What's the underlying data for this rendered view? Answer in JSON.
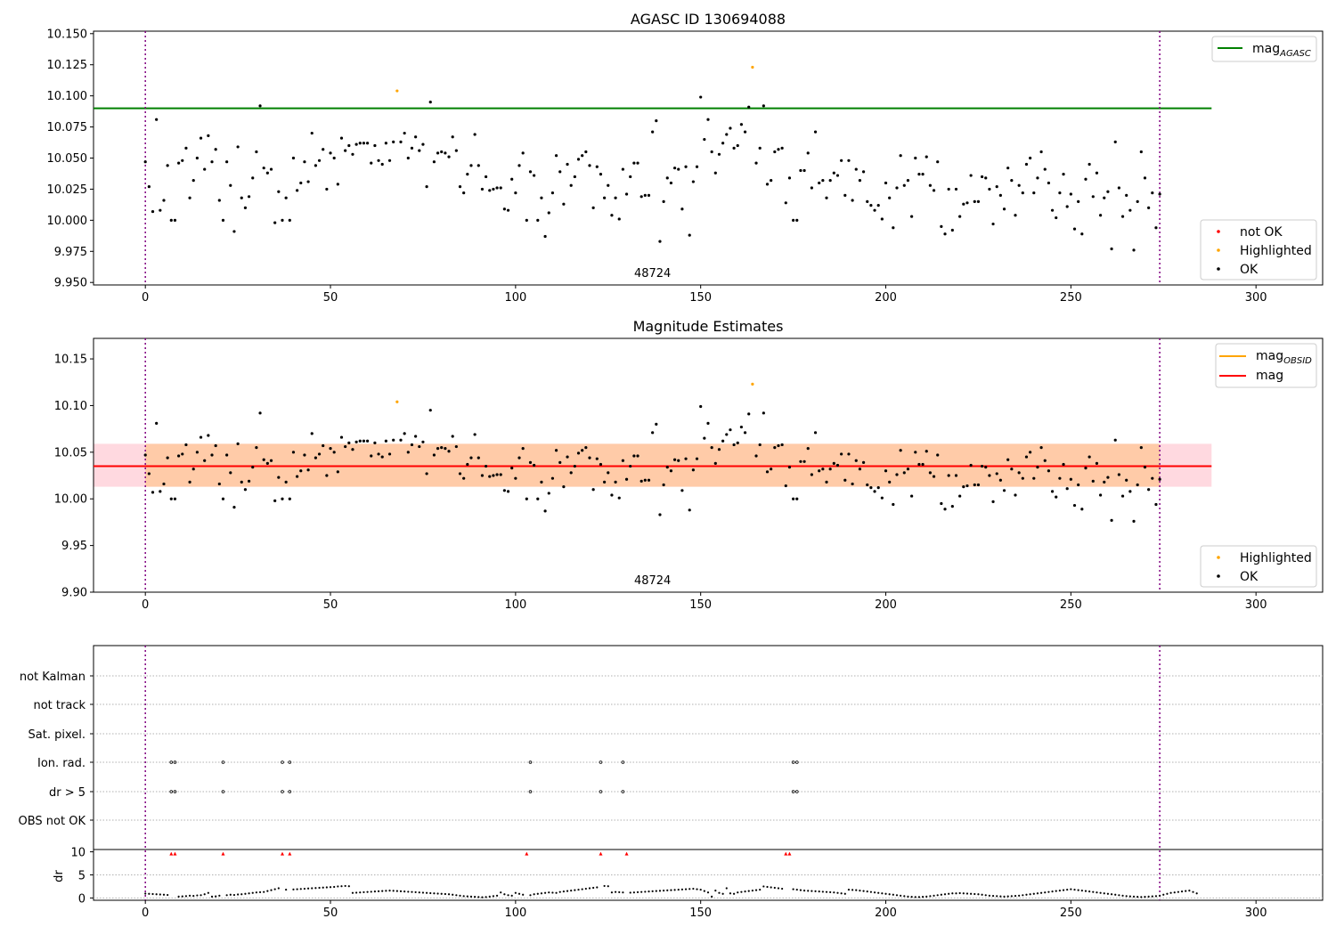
{
  "chart_data": [
    {
      "type": "scatter",
      "title": "AGASC ID 130694088",
      "xlim": [
        -14,
        318
      ],
      "ylim": [
        9.948,
        10.152
      ],
      "xticks": [
        0,
        50,
        100,
        150,
        200,
        250,
        300
      ],
      "yticks": [
        9.95,
        9.975,
        10.0,
        10.025,
        10.05,
        10.075,
        10.1,
        10.125,
        10.15
      ],
      "ytick_format": 3,
      "obsid_label": "48724",
      "obsid_label_x": 137,
      "obsid_boundaries": [
        0,
        274
      ],
      "hlines": [
        {
          "name": "mag_AGASC",
          "value": 10.09,
          "x_range": [
            -14,
            288
          ],
          "color": "#008000"
        }
      ],
      "highlighted_points": [
        {
          "x": 68,
          "y": 10.104
        },
        {
          "x": 164,
          "y": 10.123
        }
      ],
      "series_OK_base": 10.035,
      "legend": {
        "lines": [
          {
            "label": "mag",
            "sub": "AGASC",
            "color": "#008000"
          }
        ],
        "markers": [
          {
            "label": "not OK",
            "color": "#ff0000"
          },
          {
            "label": "Highlighted",
            "color": "#ffa500"
          },
          {
            "label": "OK",
            "color": "#000000"
          }
        ]
      }
    },
    {
      "type": "scatter",
      "title": "Magnitude Estimates",
      "xlim": [
        -14,
        318
      ],
      "ylim": [
        9.9,
        10.172
      ],
      "xticks": [
        0,
        50,
        100,
        150,
        200,
        250,
        300
      ],
      "yticks": [
        9.9,
        9.95,
        10.0,
        10.05,
        10.1,
        10.15
      ],
      "ytick_format": 2,
      "obsid_label": "48724",
      "obsid_label_x": 137,
      "obsid_boundaries": [
        0,
        274
      ],
      "band": {
        "low": 10.013,
        "high": 10.059,
        "x_range": [
          -14,
          288
        ]
      },
      "hlines": [
        {
          "name": "mag",
          "value": 10.035,
          "x_range": [
            -14,
            288
          ],
          "color": "#ff0000"
        }
      ],
      "highlighted_points": [
        {
          "x": 68,
          "y": 10.104
        },
        {
          "x": 164,
          "y": 10.123
        }
      ],
      "legend": {
        "lines": [
          {
            "label": "mag",
            "sub": "OBSID",
            "color": "#ffa500"
          },
          {
            "label": "mag",
            "sub": "",
            "color": "#ff0000"
          }
        ],
        "markers": [
          {
            "label": "Highlighted",
            "color": "#ffa500"
          },
          {
            "label": "OK",
            "color": "#000000"
          }
        ]
      }
    },
    {
      "type": "scatter",
      "title": "",
      "xlim": [
        -14,
        318
      ],
      "xticks": [
        0,
        50,
        100,
        150,
        200,
        250,
        300
      ],
      "flag_rows": [
        "not Kalman",
        "not track",
        "Sat. pixel.",
        "Ion. rad.",
        "dr > 5",
        "OBS not OK"
      ],
      "flag_points": {
        "Ion. rad.": [
          7,
          8,
          21,
          37,
          39,
          104,
          123,
          129,
          175,
          176
        ],
        "dr > 5": [
          7,
          8,
          21,
          37,
          39,
          104,
          123,
          129,
          175,
          176
        ]
      },
      "dr": {
        "ylabel": "dr",
        "yticks": [
          0,
          5,
          10
        ],
        "ylim": [
          -0.5,
          10.5
        ],
        "clip_value": 10,
        "clipped_x": [
          7,
          8,
          21,
          37,
          39,
          104,
          123,
          129,
          175,
          176
        ]
      },
      "obsid_boundaries": [
        0,
        274
      ]
    }
  ],
  "magnitudes": [
    10.047,
    10.027,
    10.007,
    10.081,
    10.008,
    10.016,
    10.044,
    10.0,
    10.0,
    10.046,
    10.048,
    10.058,
    10.018,
    10.032,
    10.05,
    10.066,
    10.041,
    10.068,
    10.047,
    10.057,
    10.016,
    10.0,
    10.047,
    10.028,
    9.991,
    10.059,
    10.018,
    10.01,
    10.019,
    10.034,
    10.055,
    10.092,
    10.042,
    10.038,
    10.041,
    9.998,
    10.023,
    10.0,
    10.018,
    10.0,
    10.05,
    10.024,
    10.03,
    10.047,
    10.031,
    10.07,
    10.044,
    10.048,
    10.057,
    10.025,
    10.054,
    10.05,
    10.029,
    10.066,
    10.056,
    10.06,
    10.053,
    10.061,
    10.062,
    10.062,
    10.062,
    10.046,
    10.06,
    10.048,
    10.045,
    10.062,
    10.048,
    10.063,
    10.104,
    10.063,
    10.07,
    10.05,
    10.058,
    10.067,
    10.056,
    10.061,
    10.027,
    10.095,
    10.047,
    10.054,
    10.055,
    10.054,
    10.051,
    10.067,
    10.056,
    10.027,
    10.022,
    10.037,
    10.044,
    10.069,
    10.044,
    10.025,
    10.035,
    10.024,
    10.025,
    10.026,
    10.026,
    10.009,
    10.008,
    10.033,
    10.022,
    10.044,
    10.054,
    10.0,
    10.039,
    10.036,
    10.0,
    10.018,
    9.987,
    10.006,
    10.022,
    10.052,
    10.039,
    10.013,
    10.045,
    10.028,
    10.035,
    10.049,
    10.052,
    10.055,
    10.044,
    10.01,
    10.043,
    10.037,
    10.018,
    10.028,
    10.004,
    10.018,
    10.001,
    10.041,
    10.021,
    10.035,
    10.046,
    10.046,
    10.019,
    10.02,
    10.02,
    10.071,
    10.08,
    9.983,
    10.015,
    10.034,
    10.03,
    10.042,
    10.041,
    10.009,
    10.043,
    9.988,
    10.031,
    10.043,
    10.099,
    10.065,
    10.081,
    10.055,
    10.038,
    10.053,
    10.062,
    10.069,
    10.074,
    10.058,
    10.06,
    10.077,
    10.071,
    10.091,
    10.123,
    10.046,
    10.058,
    10.092,
    10.029,
    10.032,
    10.055,
    10.057,
    10.058,
    10.014,
    10.034,
    10.0,
    10.0,
    10.04,
    10.04,
    10.054,
    10.026,
    10.071,
    10.03,
    10.032,
    10.018,
    10.032,
    10.038,
    10.036,
    10.048,
    10.02,
    10.048,
    10.016,
    10.041,
    10.032,
    10.039,
    10.015,
    10.012,
    10.008,
    10.012,
    10.001,
    10.03,
    10.018,
    9.994,
    10.026,
    10.052,
    10.028,
    10.032,
    10.003,
    10.05,
    10.037,
    10.037,
    10.051,
    10.028,
    10.024,
    10.047,
    9.995,
    9.989,
    10.025,
    9.992,
    10.025,
    10.003,
    10.013,
    10.014,
    10.036,
    10.015,
    10.015,
    10.035,
    10.034,
    10.025,
    9.997,
    10.027,
    10.02,
    10.009,
    10.042,
    10.032,
    10.004,
    10.028,
    10.022,
    10.045,
    10.05,
    10.022,
    10.034,
    10.055,
    10.041,
    10.03,
    10.008,
    10.002,
    10.022,
    10.037,
    10.011,
    10.021,
    9.993,
    10.015,
    9.989,
    10.033,
    10.045,
    10.019,
    10.038,
    10.004,
    10.018,
    10.023,
    9.977,
    10.063,
    10.026,
    10.003,
    10.02,
    10.008,
    9.976,
    10.015,
    10.055,
    10.034,
    10.01,
    10.022,
    9.994,
    10.021
  ],
  "dr_values": [
    0.95,
    0.9,
    0.85,
    0.8,
    0.75,
    0.7,
    0.65,
    10,
    10,
    0.3,
    0.35,
    0.4,
    0.5,
    0.45,
    0.55,
    0.6,
    0.8,
    1.1,
    0.3,
    0.35,
    0.5,
    10,
    0.6,
    0.7,
    0.65,
    0.75,
    0.8,
    0.9,
    1.0,
    1.1,
    1.2,
    1.25,
    1.3,
    1.5,
    1.7,
    1.9,
    2.1,
    10,
    1.8,
    10,
    1.85,
    1.9,
    1.95,
    2.0,
    2.05,
    2.1,
    2.15,
    2.2,
    2.25,
    2.3,
    2.35,
    2.4,
    2.5,
    2.55,
    2.6,
    2.55,
    1.1,
    1.15,
    1.2,
    1.25,
    1.3,
    1.35,
    1.4,
    1.45,
    1.5,
    1.55,
    1.6,
    1.55,
    1.5,
    1.45,
    1.4,
    1.35,
    1.3,
    1.25,
    1.2,
    1.15,
    1.1,
    1.05,
    1.0,
    0.95,
    0.9,
    0.85,
    0.8,
    0.7,
    0.6,
    0.5,
    0.4,
    0.35,
    0.3,
    0.25,
    0.2,
    0.15,
    0.2,
    0.3,
    0.4,
    0.5,
    1.2,
    0.8,
    0.6,
    0.5,
    1.1,
    0.9,
    0.7,
    10,
    0.6,
    0.8,
    0.9,
    1.0,
    1.1,
    1.2,
    1.15,
    1.1,
    1.3,
    1.4,
    1.5,
    1.6,
    1.7,
    1.8,
    1.9,
    2.0,
    2.1,
    2.2,
    2.3,
    10,
    2.6,
    2.55,
    1.2,
    1.3,
    1.25,
    1.2,
    10,
    1.15,
    1.2,
    1.25,
    1.3,
    1.35,
    1.4,
    1.45,
    1.5,
    1.55,
    1.6,
    1.65,
    1.7,
    1.75,
    1.8,
    1.85,
    1.9,
    1.95,
    2.0,
    1.9,
    1.8,
    1.5,
    1.2,
    0.3,
    1.6,
    1.1,
    0.9,
    2.1,
    1.0,
    0.9,
    1.2,
    1.3,
    1.4,
    1.5,
    1.6,
    1.7,
    1.8,
    2.5,
    2.4,
    2.3,
    2.2,
    2.1,
    2.0,
    10,
    10,
    1.9,
    1.8,
    1.7,
    1.6,
    1.55,
    1.5,
    1.45,
    1.4,
    1.35,
    1.3,
    1.25,
    1.2,
    1.1,
    1.0,
    0.9,
    1.8,
    1.75,
    1.7,
    1.6,
    1.5,
    1.4,
    1.3,
    1.2,
    1.1,
    1.0,
    0.9,
    0.8,
    0.7,
    0.6,
    0.5,
    0.4,
    0.3,
    0.25,
    0.2,
    0.2,
    0.25,
    0.3,
    0.4,
    0.5,
    0.6,
    0.7,
    0.8,
    0.9,
    1.0,
    1.0,
    1.05,
    1.0,
    0.95,
    0.9,
    0.85,
    0.8,
    0.7,
    0.6,
    0.5,
    0.45,
    0.4,
    0.35,
    0.3,
    0.35,
    0.4,
    0.45,
    0.5,
    0.6,
    0.7,
    0.8,
    0.9,
    1.0,
    1.1,
    1.2,
    1.3,
    1.4,
    1.5,
    1.6,
    1.7,
    1.8,
    1.9,
    1.8,
    1.7,
    1.6,
    1.5,
    1.4,
    1.3,
    1.2,
    1.1,
    1.0,
    0.9,
    0.8,
    0.7,
    0.6,
    0.5,
    0.4,
    0.35,
    0.3,
    0.25,
    0.2,
    0.25,
    0.3,
    0.35,
    0.4,
    0.5,
    0.7,
    0.9,
    1.1,
    1.2,
    1.3,
    1.4,
    1.5,
    1.6,
    1.3,
    1.0
  ]
}
